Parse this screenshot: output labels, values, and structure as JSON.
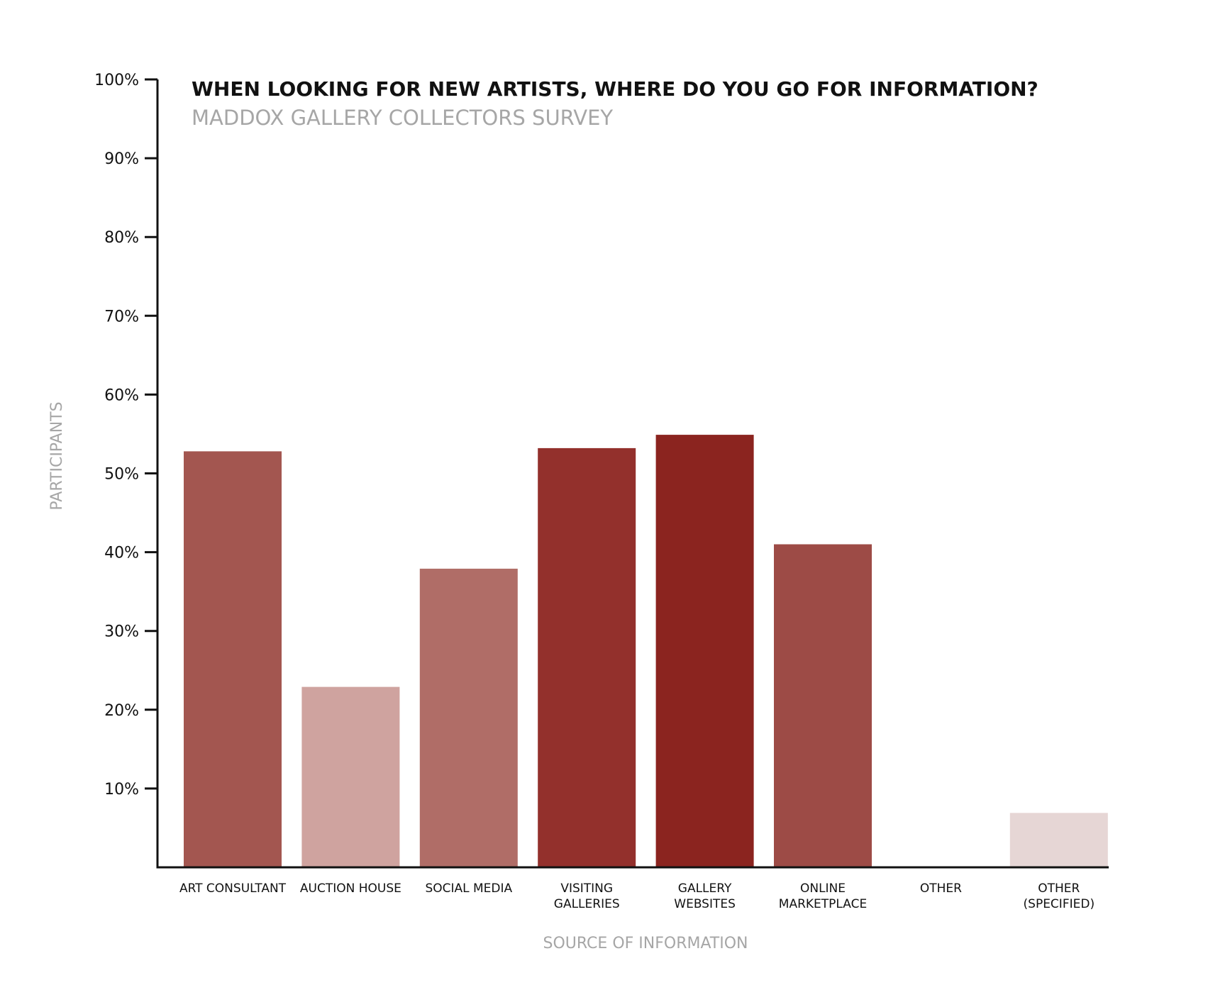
{
  "chart_data": {
    "type": "bar",
    "title": "WHEN LOOKING FOR NEW ARTISTS, WHERE DO YOU GO FOR INFORMATION?",
    "subtitle": "MADDOX GALLERY COLLECTORS SURVEY",
    "xlabel": "SOURCE OF INFORMATION",
    "ylabel": "PARTICIPANTS",
    "ylim": [
      0,
      100
    ],
    "yticks": [
      10,
      20,
      30,
      40,
      50,
      60,
      70,
      80,
      90,
      100
    ],
    "ytick_labels": [
      "10%",
      "20%",
      "30%",
      "40%",
      "50%",
      "60%",
      "70%",
      "80%",
      "90%",
      "100%"
    ],
    "grid": false,
    "legend": "none",
    "categories": [
      [
        "ART CONSULTANT"
      ],
      [
        "AUCTION HOUSE"
      ],
      [
        "SOCIAL MEDIA"
      ],
      [
        "VISITING",
        "GALLERIES"
      ],
      [
        "GALLERY",
        "WEBSITES"
      ],
      [
        "ONLINE",
        "MARKETPLACE"
      ],
      [
        "OTHER"
      ],
      [
        "OTHER",
        "(SPECIFIED)"
      ]
    ],
    "values": [
      52.8,
      22.9,
      37.9,
      53.2,
      54.9,
      41.0,
      0,
      6.9
    ],
    "colors": [
      "#a35650",
      "#cfa39f",
      "#b06d67",
      "#93302c",
      "#8b241f",
      "#9d4b46",
      "#c9a3a0",
      "#e6d6d5"
    ]
  }
}
